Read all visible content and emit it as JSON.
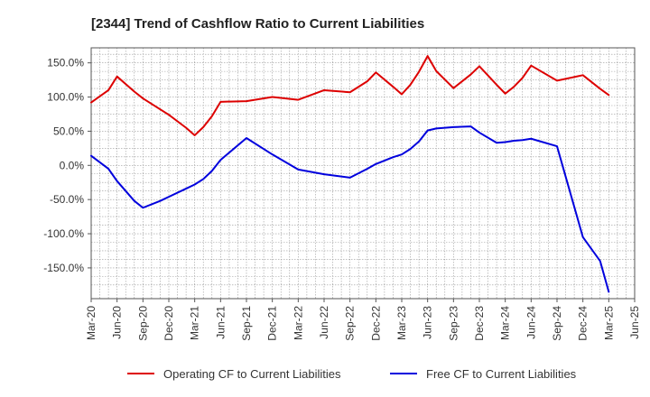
{
  "colors": {
    "operating": "#dd0000",
    "free": "#0000dd"
  },
  "chart_data": {
    "type": "line",
    "title": "[2344]  Trend of Cashflow Ratio to Current Liabilities",
    "xlabel": "",
    "ylabel": "",
    "x": [
      "Mar-20",
      "May-20",
      "Jun-20",
      "Aug-20",
      "Sep-20",
      "Nov-20",
      "Dec-20",
      "Feb-21",
      "Mar-21",
      "Apr-21",
      "May-21",
      "Jun-21",
      "Sep-21",
      "Dec-21",
      "Mar-22",
      "Jun-22",
      "Sep-22",
      "Nov-22",
      "Dec-22",
      "Feb-23",
      "Mar-23",
      "Apr-23",
      "May-23",
      "Jun-23",
      "Jul-23",
      "Sep-23",
      "Nov-23",
      "Dec-23",
      "Feb-24",
      "Mar-24",
      "Apr-24",
      "May-24",
      "Jun-24",
      "Sep-24",
      "Dec-24",
      "Feb-25",
      "Mar-25"
    ],
    "x_ticks": [
      "Mar-20",
      "Jun-20",
      "Sep-20",
      "Dec-20",
      "Mar-21",
      "Jun-21",
      "Sep-21",
      "Dec-21",
      "Mar-22",
      "Jun-22",
      "Sep-22",
      "Dec-22",
      "Mar-23",
      "Jun-23",
      "Sep-23",
      "Dec-23",
      "Mar-24",
      "Jun-24",
      "Sep-24",
      "Dec-24",
      "Mar-25",
      "Jun-25"
    ],
    "x_months": [
      0,
      2,
      3,
      5,
      6,
      8,
      9,
      11,
      12,
      13,
      14,
      15,
      18,
      21,
      24,
      27,
      30,
      32,
      33,
      35,
      36,
      37,
      38,
      39,
      40,
      42,
      44,
      45,
      47,
      48,
      49,
      50,
      51,
      54,
      57,
      59,
      60
    ],
    "x_range_months": [
      0,
      63
    ],
    "ylim": [
      -195,
      172
    ],
    "y_ticks": [
      -150,
      -100,
      -50,
      0,
      50,
      100,
      150
    ],
    "y_tick_labels": [
      "-150.0%",
      "-100.0%",
      "-50.0%",
      "0.0%",
      "50.0%",
      "100.0%",
      "150.0%"
    ],
    "grid": true,
    "legend": "bottom",
    "series": [
      {
        "name": "Operating CF to Current Liabilities",
        "values": [
          92,
          110,
          130,
          108,
          98,
          82,
          74,
          55,
          44,
          56,
          72,
          93,
          94,
          100,
          96,
          110,
          107,
          123,
          136,
          115,
          104,
          118,
          137,
          160,
          138,
          113,
          133,
          145,
          118,
          105,
          115,
          128,
          146,
          124,
          132,
          112,
          103
        ]
      },
      {
        "name": "Free CF to Current Liabilities",
        "values": [
          14,
          -5,
          -23,
          -52,
          -62,
          -52,
          -46,
          -34,
          -28,
          -20,
          -8,
          8,
          40,
          16,
          -6,
          -13,
          -18,
          -5,
          2,
          12,
          16,
          24,
          35,
          51,
          54,
          56,
          57,
          48,
          33,
          34,
          36,
          37,
          39,
          28,
          -105,
          -140,
          -185
        ]
      }
    ]
  }
}
